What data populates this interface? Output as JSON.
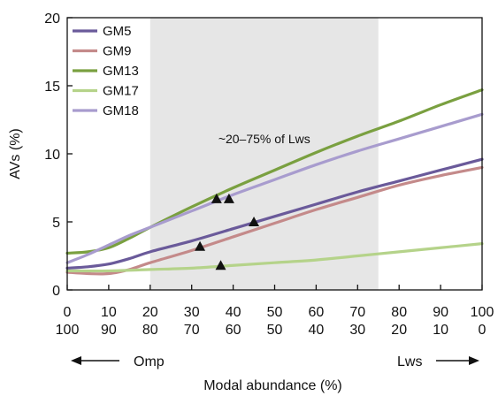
{
  "chart_data": {
    "type": "line",
    "xlabel": "Modal abundance (%)",
    "ylabel": "AVs (%)",
    "xlim": [
      0,
      100
    ],
    "ylim": [
      0,
      20
    ],
    "x_ticks_top": [
      "0",
      "10",
      "20",
      "30",
      "40",
      "50",
      "60",
      "70",
      "80",
      "90",
      "100"
    ],
    "x_ticks_bottom": [
      "100",
      "90",
      "80",
      "70",
      "60",
      "50",
      "40",
      "30",
      "20",
      "10",
      "0"
    ],
    "y_ticks": [
      "0",
      "5",
      "10",
      "15",
      "20"
    ],
    "shaded_region": {
      "x": [
        20,
        75
      ],
      "label": "~20–75% of Lws",
      "color": "#e6e6e6"
    },
    "left_end_label": "Omp",
    "right_end_label": "Lws",
    "legend_position": "top-left",
    "grid": false,
    "series": [
      {
        "name": "GM5",
        "color": "#6a5a9a",
        "x": [
          0,
          5,
          10,
          15,
          20,
          30,
          40,
          50,
          60,
          70,
          80,
          90,
          100
        ],
        "y": [
          1.6,
          1.7,
          1.9,
          2.3,
          2.8,
          3.6,
          4.5,
          5.4,
          6.3,
          7.2,
          8.0,
          8.8,
          9.6
        ]
      },
      {
        "name": "GM9",
        "color": "#c48a8a",
        "x": [
          0,
          5,
          10,
          15,
          20,
          30,
          40,
          50,
          60,
          70,
          80,
          90,
          100
        ],
        "y": [
          1.3,
          1.2,
          1.2,
          1.5,
          2.0,
          2.9,
          3.9,
          4.9,
          5.9,
          6.8,
          7.7,
          8.4,
          9.0
        ]
      },
      {
        "name": "GM13",
        "color": "#7aa040",
        "x": [
          0,
          5,
          10,
          15,
          20,
          30,
          40,
          50,
          60,
          70,
          80,
          90,
          100
        ],
        "y": [
          2.7,
          2.8,
          3.1,
          3.8,
          4.6,
          6.1,
          7.5,
          8.8,
          10.1,
          11.3,
          12.4,
          13.6,
          14.7
        ]
      },
      {
        "name": "GM17",
        "color": "#b5d38a",
        "x": [
          0,
          10,
          20,
          30,
          40,
          50,
          60,
          70,
          80,
          90,
          100
        ],
        "y": [
          1.4,
          1.4,
          1.5,
          1.6,
          1.8,
          2.0,
          2.2,
          2.5,
          2.8,
          3.1,
          3.4
        ]
      },
      {
        "name": "GM18",
        "color": "#a89cce",
        "x": [
          0,
          5,
          10,
          15,
          20,
          30,
          40,
          50,
          60,
          70,
          80,
          90,
          100
        ],
        "y": [
          2.0,
          2.6,
          3.3,
          4.0,
          4.6,
          5.8,
          7.0,
          8.1,
          9.2,
          10.2,
          11.1,
          12.0,
          12.9
        ]
      }
    ],
    "markers": [
      {
        "x": 36,
        "y": 6.7
      },
      {
        "x": 39,
        "y": 6.7
      },
      {
        "x": 45,
        "y": 5.0
      },
      {
        "x": 32,
        "y": 3.2
      },
      {
        "x": 37,
        "y": 1.8
      }
    ]
  }
}
